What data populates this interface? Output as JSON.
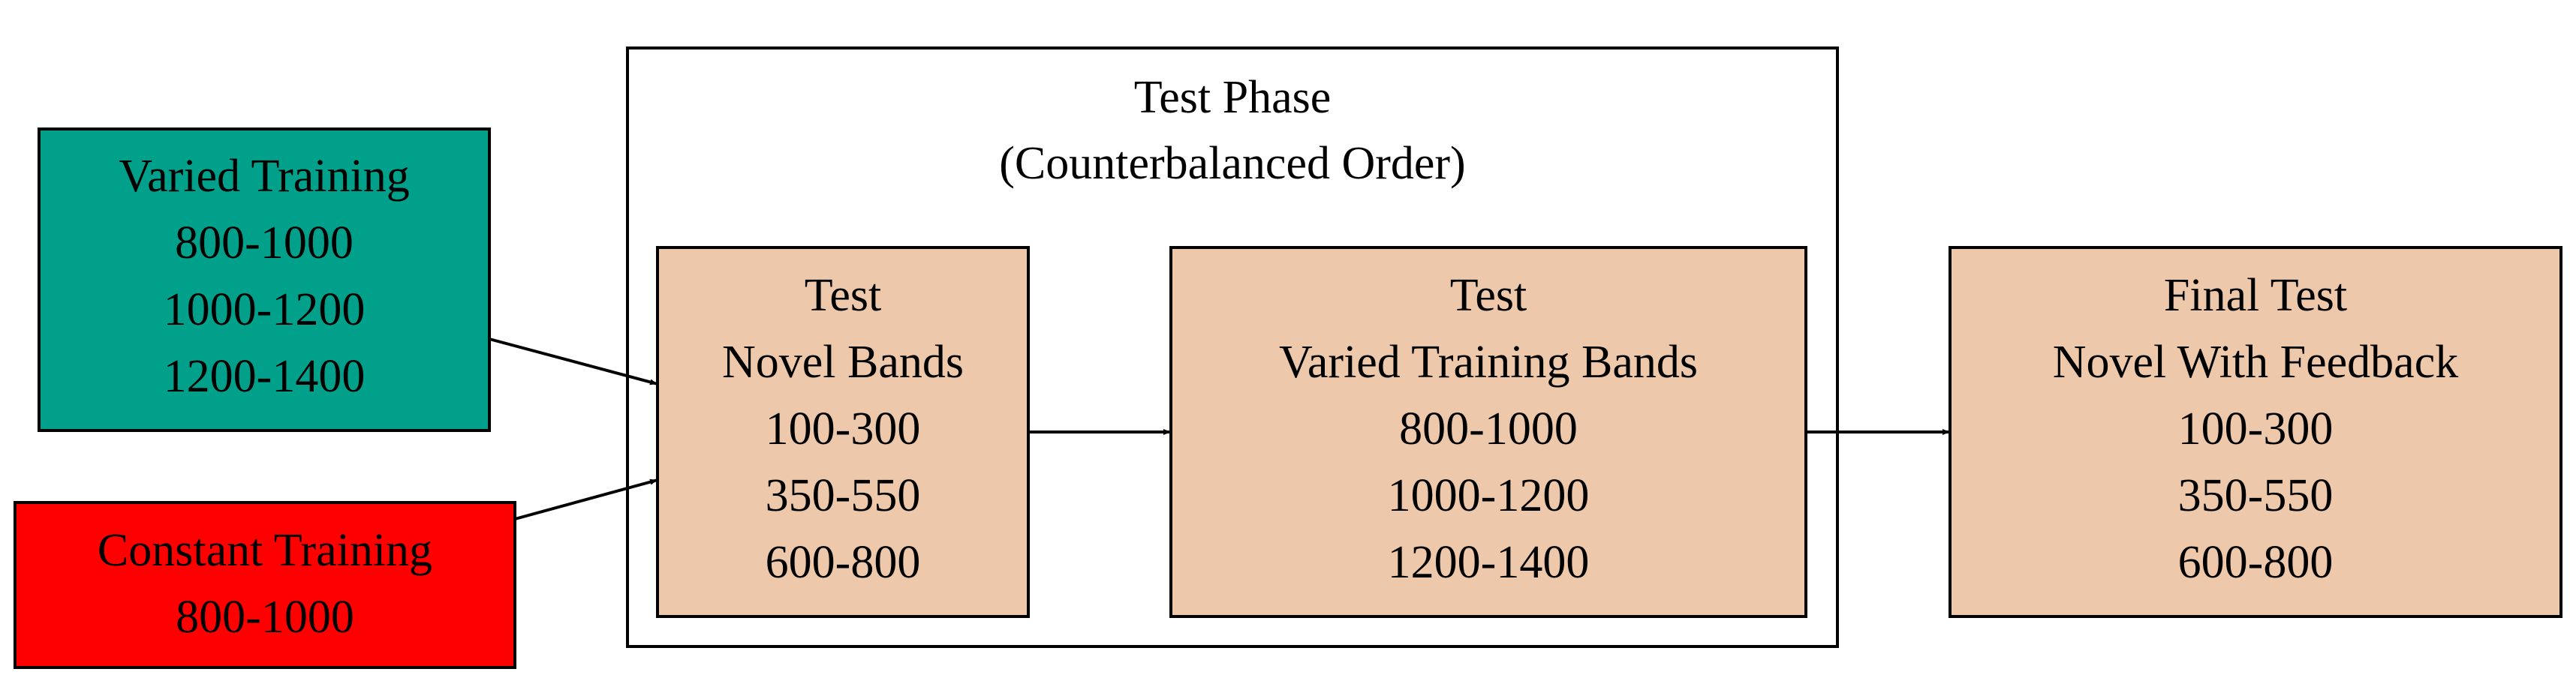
{
  "cluster": {
    "title": "Test Phase",
    "subtitle": "(Counterbalanced Order)"
  },
  "nodes": {
    "varied_training": {
      "lines": [
        "Varied Training",
        "800-1000",
        "1000-1200",
        "1200-1400"
      ],
      "fill": "#00a08a"
    },
    "constant_training": {
      "lines": [
        "Constant Training",
        "800-1000"
      ],
      "fill": "#ff0000"
    },
    "test_novel": {
      "lines": [
        "Test",
        "Novel Bands",
        "100-300",
        "350-550",
        "600-800"
      ],
      "fill": "#edc8aa"
    },
    "test_varied": {
      "lines": [
        "Test",
        "Varied Training Bands",
        "800-1000",
        "1000-1200",
        "1200-1400"
      ],
      "fill": "#edc8aa"
    },
    "final_test": {
      "lines": [
        "Final Test",
        "Novel With Feedback",
        "100-300",
        "350-550",
        "600-800"
      ],
      "fill": "#edc8aa"
    }
  },
  "colors": {
    "stroke": "#000000",
    "background": "#ffffff"
  }
}
